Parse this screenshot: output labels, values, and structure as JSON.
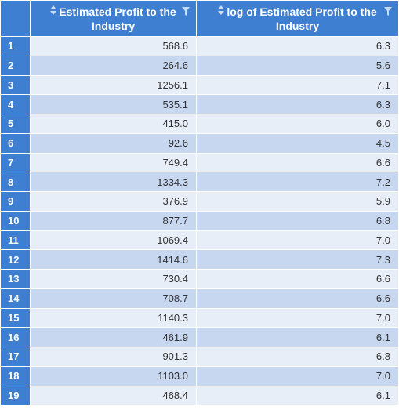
{
  "table": {
    "columns": [
      {
        "label": "Estimated Profit to the Industry"
      },
      {
        "label": "log of Estimated Profit to the Industry"
      }
    ],
    "rows": [
      {
        "index": "1",
        "profit": "568.6",
        "log": "6.3"
      },
      {
        "index": "2",
        "profit": "264.6",
        "log": "5.6"
      },
      {
        "index": "3",
        "profit": "1256.1",
        "log": "7.1"
      },
      {
        "index": "4",
        "profit": "535.1",
        "log": "6.3"
      },
      {
        "index": "5",
        "profit": "415.0",
        "log": "6.0"
      },
      {
        "index": "6",
        "profit": "92.6",
        "log": "4.5"
      },
      {
        "index": "7",
        "profit": "749.4",
        "log": "6.6"
      },
      {
        "index": "8",
        "profit": "1334.3",
        "log": "7.2"
      },
      {
        "index": "9",
        "profit": "376.9",
        "log": "5.9"
      },
      {
        "index": "10",
        "profit": "877.7",
        "log": "6.8"
      },
      {
        "index": "11",
        "profit": "1069.4",
        "log": "7.0"
      },
      {
        "index": "12",
        "profit": "1414.6",
        "log": "7.3"
      },
      {
        "index": "13",
        "profit": "730.4",
        "log": "6.6"
      },
      {
        "index": "14",
        "profit": "708.7",
        "log": "6.6"
      },
      {
        "index": "15",
        "profit": "1140.3",
        "log": "7.0"
      },
      {
        "index": "16",
        "profit": "461.9",
        "log": "6.1"
      },
      {
        "index": "17",
        "profit": "901.3",
        "log": "6.8"
      },
      {
        "index": "18",
        "profit": "1103.0",
        "log": "7.0"
      },
      {
        "index": "19",
        "profit": "468.4",
        "log": "6.1"
      }
    ]
  },
  "colors": {
    "header": "#3f7fd2",
    "row_light": "#e8eef8",
    "row_dark": "#c7d7f0"
  },
  "icons": {
    "sort": "sort-updown-icon",
    "filter": "filter-funnel-icon"
  }
}
